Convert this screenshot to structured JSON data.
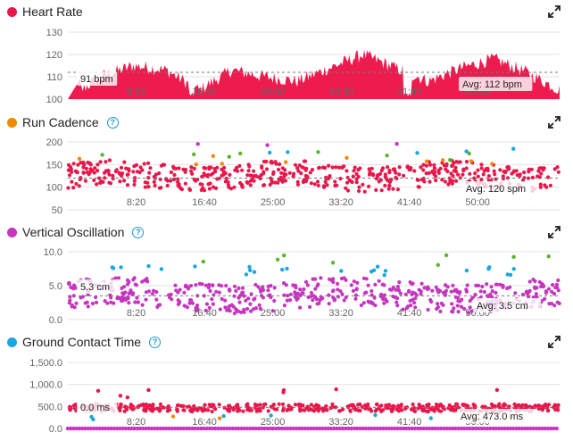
{
  "panels": [
    {
      "id": "heart-rate",
      "title": "Heart Rate",
      "color": "#e8174a",
      "help": false,
      "cursor_label": "91 bpm",
      "avg_label": "Avg: 112 bpm",
      "avg": 112,
      "cursor": 91,
      "yticks": [
        "130",
        "120",
        "110",
        "100"
      ],
      "ytick_values": [
        130,
        120,
        110,
        100
      ],
      "xticks": [
        "8:20",
        "16:40",
        "25:00",
        "33:20",
        "41:40",
        "50:00"
      ]
    },
    {
      "id": "run-cadence",
      "title": "Run Cadence",
      "color": "#f08a00",
      "help": true,
      "cursor_label": "",
      "avg_label": "Avg: 120 spm",
      "avg": 120,
      "yticks": [
        "200",
        "150",
        "100",
        "50"
      ],
      "ytick_values": [
        200,
        150,
        100,
        50
      ],
      "xticks": [
        "8:20",
        "16:40",
        "25:00",
        "33:20",
        "41:40",
        "50:00"
      ]
    },
    {
      "id": "vertical-oscillation",
      "title": "Vertical Oscillation",
      "color": "#c735c0",
      "help": true,
      "cursor_label": "5.3 cm",
      "avg_label": "Avg: 3.5 cm",
      "avg": 3.5,
      "cursor": 5.3,
      "yticks": [
        "10.0",
        "5.0",
        "0.0"
      ],
      "ytick_values": [
        10,
        5,
        0
      ],
      "xticks": [
        "8:20",
        "16:40",
        "25:00",
        "33:20",
        "41:40",
        "50:00"
      ]
    },
    {
      "id": "ground-contact-time",
      "title": "Ground Contact Time",
      "color": "#1aa7e0",
      "help": true,
      "cursor_label": "0.0 ms",
      "avg_label": "Avg: 473.0 ms",
      "avg": 473,
      "cursor": 0,
      "yticks": [
        "1,500.0",
        "1,000.0",
        "500.0",
        "0.0"
      ],
      "ytick_values": [
        1500,
        1000,
        500,
        0
      ],
      "xticks": [
        "8:20",
        "16:40",
        "25:00",
        "33:20",
        "41:40",
        "50:00"
      ]
    }
  ],
  "colors": {
    "heart": "#ee1c4e",
    "point_red": "#e8174a",
    "point_orange": "#f08a00",
    "point_green": "#5ab52a",
    "point_blue": "#1aa7e0",
    "point_purple": "#c735c0"
  },
  "chart_data": [
    {
      "type": "area",
      "series_name": "Heart Rate",
      "x_range_sec": [
        0,
        3600
      ],
      "ylim": [
        100,
        130
      ],
      "x": [
        0,
        240,
        480,
        720,
        960,
        1200,
        1440,
        1680,
        1920,
        2160,
        2400,
        2640,
        2880,
        3120,
        3360,
        3600
      ],
      "values": [
        100,
        110,
        115,
        113,
        104,
        113,
        110,
        108,
        114,
        120,
        114,
        108,
        114,
        118,
        112,
        104
      ],
      "avg": 112
    },
    {
      "type": "scatter",
      "series_name": "Run Cadence",
      "x_range_sec": [
        0,
        3600
      ],
      "ylim": [
        50,
        200
      ],
      "typical_values_spm": [
        100,
        150
      ],
      "avg": 120
    },
    {
      "type": "scatter",
      "series_name": "Vertical Oscillation",
      "x_range_sec": [
        0,
        3600
      ],
      "ylim": [
        0,
        10
      ],
      "typical_values_cm": [
        1.5,
        6.5
      ],
      "avg": 3.5
    },
    {
      "type": "scatter",
      "series_name": "Ground Contact Time",
      "x_range_sec": [
        0,
        3600
      ],
      "ylim": [
        0,
        1500
      ],
      "typical_values_ms": [
        380,
        560
      ],
      "avg": 473
    }
  ]
}
